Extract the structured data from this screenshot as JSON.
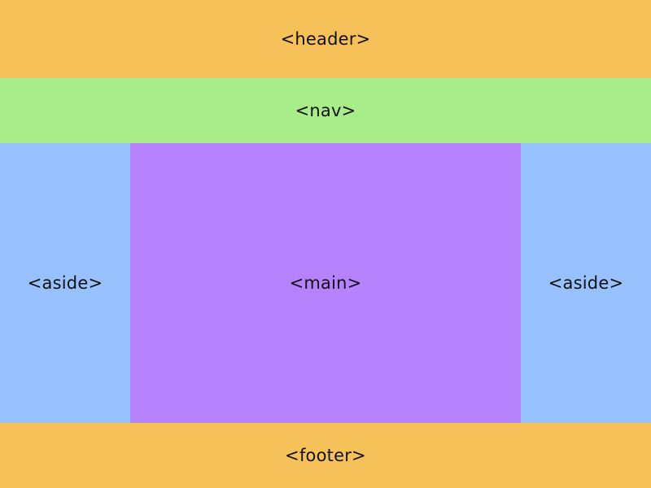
{
  "colors": {
    "header": "#F5C158",
    "nav": "#A9EC8A",
    "aside": "#97C2FD",
    "main": "#B682FD",
    "footer": "#F5C158"
  },
  "regions": {
    "header": {
      "label": "<header>"
    },
    "nav": {
      "label": "<nav>"
    },
    "aside_left": {
      "label": "<aside>"
    },
    "main": {
      "label": "<main>"
    },
    "aside_right": {
      "label": "<aside>"
    },
    "footer": {
      "label": "<footer>"
    }
  }
}
